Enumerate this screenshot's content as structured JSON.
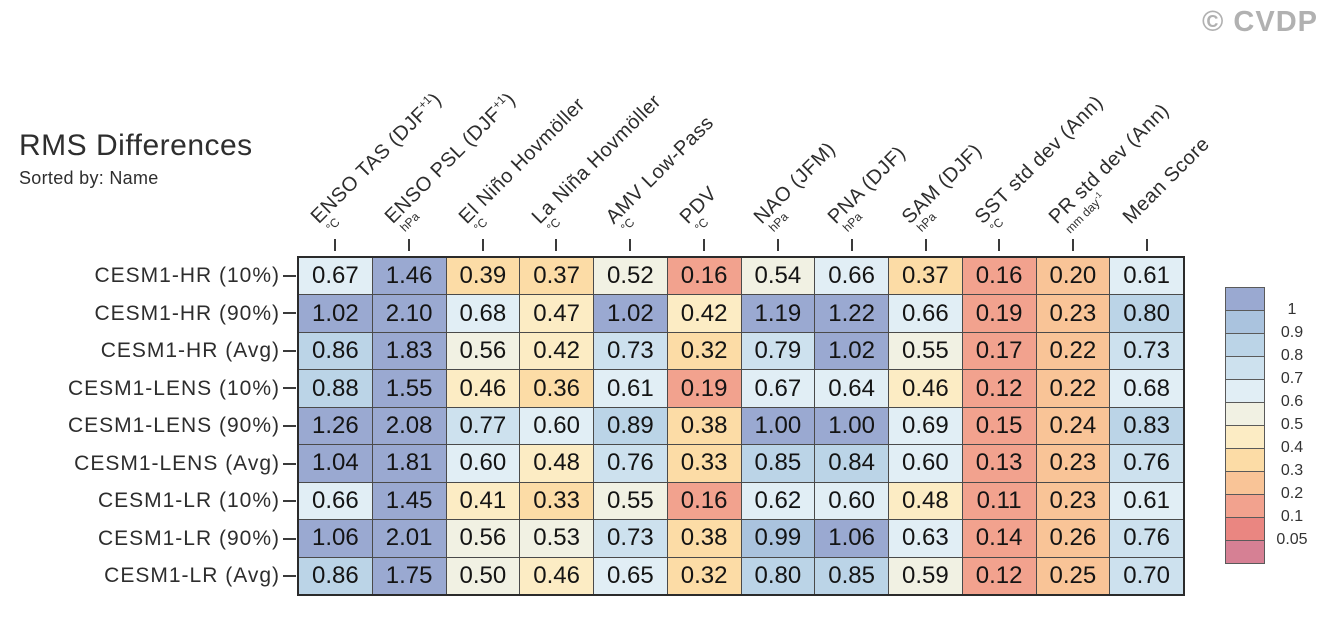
{
  "header": {
    "title": "RMS Differences",
    "subtitle": "Sorted by: Name",
    "watermark": "© CVDP"
  },
  "chart_data": {
    "type": "heatmap",
    "title": "RMS Differences",
    "subtitle": "Sorted by: Name",
    "columns": [
      {
        "label": "ENSO TAS (DJF^{+1})",
        "unit": "°C"
      },
      {
        "label": "ENSO PSL (DJF^{+1})",
        "unit": "hPa"
      },
      {
        "label": "El Niño Hovmöller",
        "unit": "°C"
      },
      {
        "label": "La Niña Hovmöller",
        "unit": "°C"
      },
      {
        "label": "AMV Low-Pass",
        "unit": "°C"
      },
      {
        "label": "PDV",
        "unit": "°C"
      },
      {
        "label": "NAO (JFM)",
        "unit": "hPa"
      },
      {
        "label": "PNA (DJF)",
        "unit": "hPa"
      },
      {
        "label": "SAM (DJF)",
        "unit": "hPa"
      },
      {
        "label": "SST std dev (Ann)",
        "unit": "°C"
      },
      {
        "label": "PR std dev (Ann)",
        "unit": "mm day^{-1}"
      },
      {
        "label": "Mean Score",
        "unit": ""
      }
    ],
    "rows": [
      "CESM1-HR (10%)",
      "CESM1-HR (90%)",
      "CESM1-HR (Avg)",
      "CESM1-LENS (10%)",
      "CESM1-LENS (90%)",
      "CESM1-LENS (Avg)",
      "CESM1-LR (10%)",
      "CESM1-LR (90%)",
      "CESM1-LR (Avg)"
    ],
    "values": [
      [
        0.67,
        1.46,
        0.39,
        0.37,
        0.52,
        0.16,
        0.54,
        0.66,
        0.37,
        0.16,
        0.2,
        0.61
      ],
      [
        1.02,
        2.1,
        0.68,
        0.47,
        1.02,
        0.42,
        1.19,
        1.22,
        0.66,
        0.19,
        0.23,
        0.8
      ],
      [
        0.86,
        1.83,
        0.56,
        0.42,
        0.73,
        0.32,
        0.79,
        1.02,
        0.55,
        0.17,
        0.22,
        0.73
      ],
      [
        0.88,
        1.55,
        0.46,
        0.36,
        0.61,
        0.19,
        0.67,
        0.64,
        0.46,
        0.12,
        0.22,
        0.68
      ],
      [
        1.26,
        2.08,
        0.77,
        0.6,
        0.89,
        0.38,
        1.0,
        1.0,
        0.69,
        0.15,
        0.24,
        0.83
      ],
      [
        1.04,
        1.81,
        0.6,
        0.48,
        0.76,
        0.33,
        0.85,
        0.84,
        0.6,
        0.13,
        0.23,
        0.76
      ],
      [
        0.66,
        1.45,
        0.41,
        0.33,
        0.55,
        0.16,
        0.62,
        0.6,
        0.48,
        0.11,
        0.23,
        0.61
      ],
      [
        1.06,
        2.01,
        0.56,
        0.53,
        0.73,
        0.38,
        0.99,
        1.06,
        0.63,
        0.14,
        0.26,
        0.76
      ],
      [
        0.86,
        1.75,
        0.5,
        0.46,
        0.65,
        0.32,
        0.8,
        0.85,
        0.59,
        0.12,
        0.25,
        0.7
      ]
    ],
    "value_decimals": 2,
    "grid": true,
    "legend_position": "right"
  },
  "legend": {
    "tick_labels": [
      "1",
      "0.9",
      "0.8",
      "0.7",
      "0.6",
      "0.5",
      "0.4",
      "0.3",
      "0.2",
      "0.1",
      "0.05"
    ],
    "thresholds": [
      1,
      0.9,
      0.8,
      0.7,
      0.6,
      0.5,
      0.4,
      0.3,
      0.2,
      0.1,
      0.05
    ],
    "colors": [
      "#9aa9d1",
      "#aac3de",
      "#bbd4e7",
      "#cde1ee",
      "#e1eef5",
      "#f1f1e3",
      "#fcecc4",
      "#fcdca6",
      "#f9c497",
      "#f2a28e",
      "#ea8681",
      "#d68094"
    ]
  }
}
